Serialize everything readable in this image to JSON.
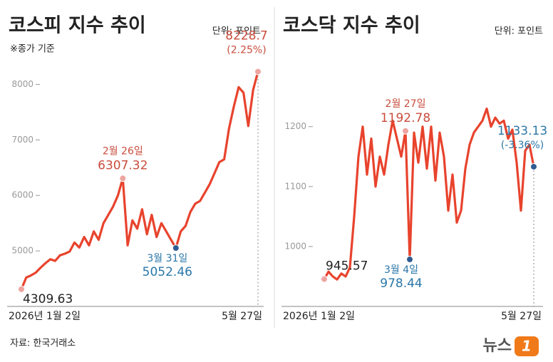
{
  "chart_data": [
    {
      "type": "line",
      "title": "코스피 지수 추이",
      "unit": "단위: 포인트",
      "note": "※종가 기준",
      "categories": [
        "2026년 1월 2일",
        null,
        null,
        null,
        null,
        null,
        null,
        null,
        null,
        null,
        null,
        null,
        null,
        null,
        null,
        null,
        null,
        null,
        null,
        null,
        null,
        "2월 26일",
        null,
        null,
        null,
        null,
        null,
        null,
        null,
        null,
        null,
        null,
        "3월 31일",
        null,
        null,
        null,
        null,
        null,
        null,
        null,
        null,
        null,
        null,
        null,
        null,
        null,
        null,
        null,
        null,
        "5월 27일"
      ],
      "values": [
        4309.63,
        4520,
        4560,
        4610,
        4700,
        4780,
        4850,
        4820,
        4920,
        4950,
        4990,
        5150,
        5060,
        5250,
        5100,
        5350,
        5200,
        5500,
        5650,
        5800,
        6000,
        6307.32,
        5100,
        5550,
        5400,
        5750,
        5300,
        5650,
        5250,
        5500,
        5350,
        5200,
        5052.46,
        5350,
        5450,
        5700,
        5850,
        5900,
        6050,
        6200,
        6400,
        6600,
        6650,
        7200,
        7600,
        7950,
        7850,
        7250,
        7900,
        8228.7
      ],
      "marker_colors": [
        "#eea5a0",
        null,
        null,
        null,
        null,
        null,
        null,
        null,
        null,
        null,
        null,
        null,
        null,
        null,
        null,
        null,
        null,
        null,
        null,
        null,
        null,
        "#eea5a0",
        null,
        null,
        null,
        null,
        null,
        null,
        null,
        null,
        null,
        null,
        "#2f5c93",
        null,
        null,
        null,
        null,
        null,
        null,
        null,
        null,
        null,
        null,
        null,
        null,
        null,
        null,
        null,
        null,
        "#eea5a0"
      ],
      "change": "(2.25%)",
      "color": "#e8432d",
      "ylim": [
        4000,
        8750
      ],
      "yticks": [
        5000,
        6000,
        7000,
        8000
      ],
      "grid": false
    },
    {
      "type": "line",
      "title": "코스닥 지수 추이",
      "unit": "단위: 포인트",
      "categories": [
        "2026년 1월 2일",
        null,
        null,
        null,
        null,
        null,
        null,
        null,
        null,
        null,
        null,
        null,
        null,
        null,
        null,
        null,
        null,
        null,
        null,
        "2월 27일",
        "3월 4일",
        null,
        null,
        null,
        null,
        null,
        null,
        null,
        null,
        null,
        null,
        null,
        null,
        null,
        null,
        null,
        null,
        null,
        null,
        null,
        null,
        null,
        null,
        null,
        null,
        null,
        null,
        null,
        null,
        "5월 27일"
      ],
      "values": [
        945.57,
        958,
        950,
        945,
        955,
        950,
        965,
        1050,
        1150,
        1200,
        1120,
        1180,
        1100,
        1150,
        1120,
        1170,
        1210,
        1180,
        1150,
        1192.78,
        978.44,
        1190,
        1140,
        1200,
        1130,
        1200,
        1110,
        1190,
        1150,
        1060,
        1120,
        1040,
        1060,
        1130,
        1170,
        1190,
        1200,
        1210,
        1230,
        1200,
        1215,
        1205,
        1210,
        1180,
        1195,
        1140,
        1060,
        1160,
        1170,
        1133.13
      ],
      "marker_colors": [
        "#eea5a0",
        null,
        null,
        null,
        null,
        null,
        null,
        null,
        null,
        null,
        null,
        null,
        null,
        null,
        null,
        null,
        null,
        null,
        null,
        "#eea5a0",
        "#2f5c93",
        null,
        null,
        null,
        null,
        null,
        null,
        null,
        null,
        null,
        null,
        null,
        null,
        null,
        null,
        null,
        null,
        null,
        null,
        null,
        null,
        null,
        null,
        null,
        null,
        null,
        null,
        null,
        null,
        "#2f5c93"
      ],
      "change": "(-3.36%)",
      "color": "#e8432d",
      "ylim": [
        900,
        1340
      ],
      "yticks": [
        1000,
        1100,
        1200
      ],
      "grid": false
    }
  ],
  "footer": {
    "source": "자료: 한국거래소",
    "logo": "뉴스",
    "logo_mark": "1"
  }
}
